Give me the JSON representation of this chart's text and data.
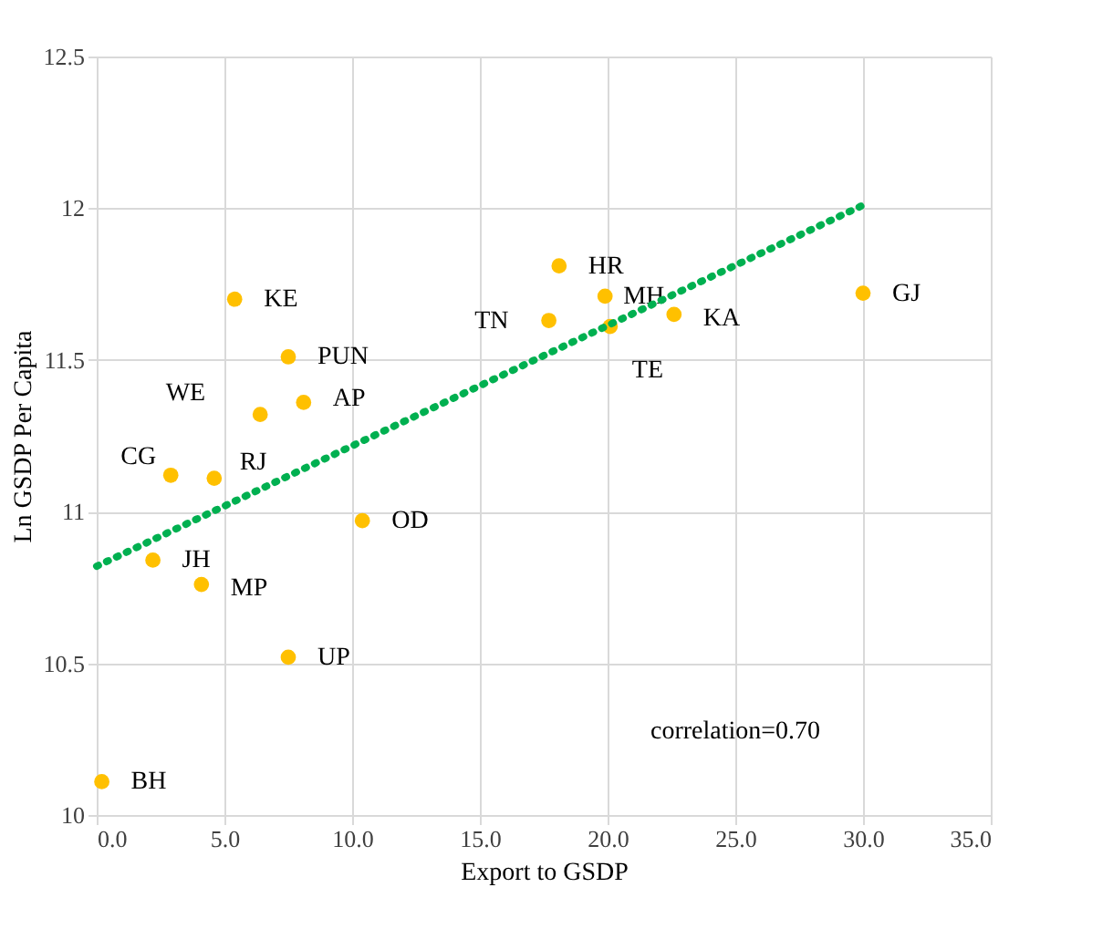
{
  "chart_data": {
    "type": "scatter",
    "xlabel": "Export to GSDP",
    "ylabel": "Ln GSDP Per Capita",
    "xlim": [
      0,
      35
    ],
    "xticks": [
      {
        "value": 0,
        "label": "0.0"
      },
      {
        "value": 5,
        "label": "5.0"
      },
      {
        "value": 10,
        "label": "10.0"
      },
      {
        "value": 15,
        "label": "15.0"
      },
      {
        "value": 20,
        "label": "20.0"
      },
      {
        "value": 25,
        "label": "25.0"
      },
      {
        "value": 30,
        "label": "30.0"
      },
      {
        "value": 35,
        "label": "35.0"
      }
    ],
    "ylim": [
      10,
      12.5
    ],
    "yticks": [
      {
        "value": 10,
        "label": "10"
      },
      10.5,
      {
        "value": 11,
        "label": "11"
      },
      11.5,
      {
        "value": 12,
        "label": "12"
      },
      12.5
    ],
    "grid": true,
    "marker": "circle",
    "series": [
      {
        "color": "#ffc000",
        "x": [
          0.2,
          2.2,
          4.1,
          2.9,
          4.6,
          6.4,
          8.1,
          7.5,
          5.4,
          7.5,
          10.4,
          17.7,
          18.1,
          19.9,
          20.1,
          22.6,
          30.0
        ],
        "values": [
          10.11,
          10.84,
          10.76,
          11.12,
          11.11,
          11.32,
          11.36,
          11.51,
          11.7,
          10.52,
          10.97,
          11.63,
          11.81,
          11.71,
          11.61,
          11.65,
          11.72
        ],
        "value_labels": [
          "BH",
          "JH",
          "MP",
          "CG",
          "RJ",
          "WE",
          "AP",
          "PUN",
          "KE",
          "UP",
          "OD",
          "TN",
          "HR",
          "MH",
          "TE",
          "KA",
          "GJ"
        ]
      },
      {
        "type": "line",
        "color": "#00b050",
        "line_style": "dotted",
        "marker": "none",
        "x": [
          0,
          30
        ],
        "values": [
          10.82,
          12.01
        ]
      }
    ],
    "annotations": [
      "correlation=0.70"
    ]
  }
}
